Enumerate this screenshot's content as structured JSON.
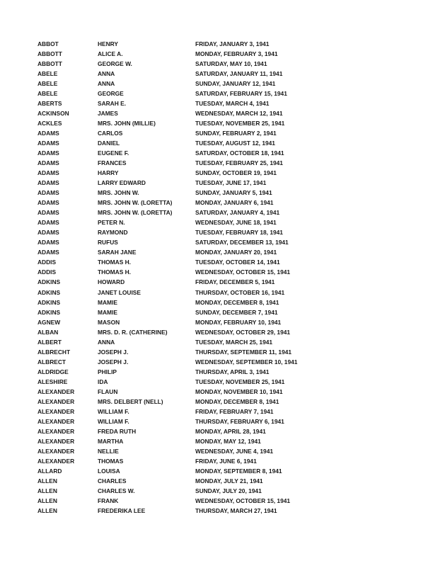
{
  "records": [
    [
      "ABBOT",
      "HENRY",
      "FRIDAY, JANUARY 3, 1941"
    ],
    [
      "ABBOTT",
      "ALICE A.",
      "MONDAY, FEBRUARY 3, 1941"
    ],
    [
      "ABBOTT",
      "GEORGE W.",
      "SATURDAY, MAY 10, 1941"
    ],
    [
      "ABELE",
      "ANNA",
      "SATURDAY, JANUARY 11, 1941"
    ],
    [
      "ABELE",
      "ANNA",
      "SUNDAY, JANUARY 12, 1941"
    ],
    [
      "ABELE",
      "GEORGE",
      "SATURDAY, FEBRUARY 15, 1941"
    ],
    [
      "ABERTS",
      "SARAH E.",
      "TUESDAY, MARCH 4, 1941"
    ],
    [
      "ACKINSON",
      "JAMES",
      "WEDNESDAY, MARCH 12, 1941"
    ],
    [
      "ACKLES",
      "MRS. JOHN (MILLIE)",
      "TUESDAY, NOVEMBER 25, 1941"
    ],
    [
      "ADAMS",
      "CARLOS",
      "SUNDAY, FEBRUARY 2, 1941"
    ],
    [
      "ADAMS",
      "DANIEL",
      "TUESDAY, AUGUST 12, 1941"
    ],
    [
      "ADAMS",
      "EUGENE F.",
      "SATURDAY, OCTOBER 18, 1941"
    ],
    [
      "ADAMS",
      "FRANCES",
      "TUESDAY, FEBRUARY 25, 1941"
    ],
    [
      "ADAMS",
      "HARRY",
      "SUNDAY, OCTOBER 19, 1941"
    ],
    [
      "ADAMS",
      "LARRY EDWARD",
      "TUESDAY, JUNE 17, 1941"
    ],
    [
      "ADAMS",
      "MRS. JOHN W.",
      "SUNDAY, JANUARY 5, 1941"
    ],
    [
      "ADAMS",
      "MRS. JOHN W. (LORETTA)",
      "MONDAY, JANUARY 6, 1941"
    ],
    [
      "ADAMS",
      "MRS. JOHN W. (LORETTA)",
      "SATURDAY, JANUARY 4, 1941"
    ],
    [
      "ADAMS",
      "PETER N.",
      "WEDNESDAY, JUNE 18, 1941"
    ],
    [
      "ADAMS",
      "RAYMOND",
      "TUESDAY, FEBRUARY 18, 1941"
    ],
    [
      "ADAMS",
      "RUFUS",
      "SATURDAY, DECEMBER 13, 1941"
    ],
    [
      "ADAMS",
      "SARAH JANE",
      "MONDAY, JANUARY 20, 1941"
    ],
    [
      "ADDIS",
      "THOMAS H.",
      "TUESDAY, OCTOBER 14, 1941"
    ],
    [
      "ADDIS",
      "THOMAS H.",
      "WEDNESDAY, OCTOBER 15, 1941"
    ],
    [
      "ADKINS",
      "HOWARD",
      "FRIDAY, DECEMBER 5, 1941"
    ],
    [
      "ADKINS",
      "JANET LOUISE",
      "THURSDAY, OCTOBER 16, 1941"
    ],
    [
      "ADKINS",
      "MAMIE",
      "MONDAY, DECEMBER 8, 1941"
    ],
    [
      "ADKINS",
      "MAMIE",
      "SUNDAY, DECEMBER 7, 1941"
    ],
    [
      "AGNEW",
      "MASON",
      "MONDAY, FEBRUARY 10, 1941"
    ],
    [
      "ALBAN",
      "MRS. D. R. (CATHERINE)",
      "WEDNESDAY, OCTOBER 29, 1941"
    ],
    [
      "ALBERT",
      "ANNA",
      "TUESDAY, MARCH 25, 1941"
    ],
    [
      "ALBRECHT",
      "JOSEPH J.",
      "THURSDAY, SEPTEMBER 11, 1941"
    ],
    [
      "ALBRECT",
      "JOSEPH J.",
      "WEDNESDAY, SEPTEMBER 10, 1941"
    ],
    [
      "ALDRIDGE",
      "PHILIP",
      "THURSDAY, APRIL 3, 1941"
    ],
    [
      "ALESHIRE",
      "IDA",
      "TUESDAY, NOVEMBER 25, 1941"
    ],
    [
      "ALEXANDER",
      "FLAUN",
      "MONDAY, NOVEMBER 10, 1941"
    ],
    [
      "ALEXANDER",
      "MRS. DELBERT (NELL)",
      "MONDAY, DECEMBER 8, 1941"
    ],
    [
      "ALEXANDER",
      "WILLIAM F.",
      "FRIDAY, FEBRUARY 7, 1941"
    ],
    [
      "ALEXANDER",
      "WILLIAM F.",
      "THURSDAY, FEBRUARY 6, 1941"
    ],
    [
      "ALEXANDER",
      "FREDA RUTH",
      "MONDAY, APRIL 28, 1941"
    ],
    [
      "ALEXANDER",
      "MARTHA",
      "MONDAY, MAY 12, 1941"
    ],
    [
      "ALEXANDER",
      "NELLIE",
      "WEDNESDAY, JUNE 4, 1941"
    ],
    [
      "ALEXANDER",
      "THOMAS",
      "FRIDAY, JUNE 6, 1941"
    ],
    [
      "ALLARD",
      "LOUISA",
      "MONDAY, SEPTEMBER 8, 1941"
    ],
    [
      "ALLEN",
      "CHARLES",
      "MONDAY, JULY 21, 1941"
    ],
    [
      "ALLEN",
      "CHARLES W.",
      "SUNDAY, JULY 20, 1941"
    ],
    [
      "ALLEN",
      "FRANK",
      "WEDNESDAY, OCTOBER 15, 1941"
    ],
    [
      "ALLEN",
      "FREDERIKA LEE",
      "THURSDAY, MARCH 27, 1941"
    ]
  ]
}
